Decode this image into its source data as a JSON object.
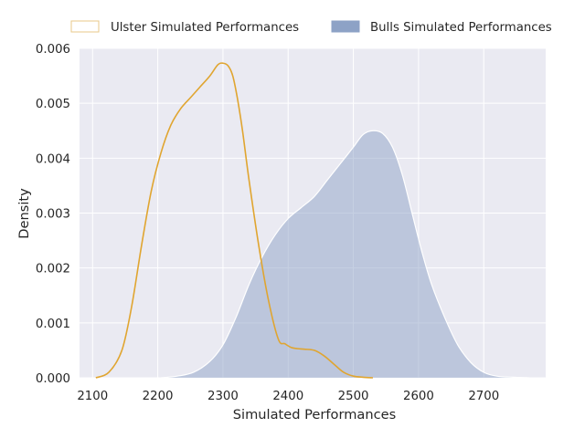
{
  "chart_data": {
    "type": "area",
    "xlabel": "Simulated Performances",
    "ylabel": "Density",
    "xlim": [
      2080,
      2795
    ],
    "ylim": [
      0,
      0.006
    ],
    "x_ticks": [
      2100,
      2200,
      2300,
      2400,
      2500,
      2600,
      2700
    ],
    "y_ticks": [
      0.0,
      0.001,
      0.002,
      0.003,
      0.004,
      0.005,
      0.006
    ],
    "x_tick_labels": [
      "2100",
      "2200",
      "2300",
      "2400",
      "2500",
      "2600",
      "2700"
    ],
    "y_tick_labels": [
      "0.000",
      "0.001",
      "0.002",
      "0.003",
      "0.004",
      "0.005",
      "0.006"
    ],
    "grid": true,
    "legend_position": "top",
    "background_color": "#eaeaf2",
    "series": [
      {
        "name": "Ulster Simulated Performances",
        "style": "line",
        "color": "#e0a530",
        "x": [
          2105,
          2125,
          2145,
          2160,
          2175,
          2190,
          2205,
          2220,
          2235,
          2250,
          2265,
          2280,
          2292,
          2300,
          2308,
          2315,
          2322,
          2330,
          2340,
          2355,
          2370,
          2385,
          2395,
          2405,
          2415,
          2425,
          2440,
          2455,
          2470,
          2485,
          2500,
          2515,
          2530
        ],
        "y": [
          0.0,
          0.0001,
          0.0005,
          0.0013,
          0.0024,
          0.0034,
          0.0041,
          0.0046,
          0.0049,
          0.0051,
          0.0053,
          0.0055,
          0.0057,
          0.00573,
          0.00568,
          0.0055,
          0.0051,
          0.0045,
          0.0036,
          0.0024,
          0.0014,
          0.0007,
          0.00062,
          0.00055,
          0.00053,
          0.00052,
          0.0005,
          0.0004,
          0.00025,
          0.0001,
          3e-05,
          1e-05,
          0.0
        ]
      },
      {
        "name": "Bulls Simulated Performances",
        "style": "filled",
        "color": "#8da2c6",
        "x": [
          2205,
          2230,
          2255,
          2280,
          2300,
          2320,
          2340,
          2360,
          2380,
          2400,
          2420,
          2440,
          2460,
          2480,
          2500,
          2515,
          2530,
          2545,
          2560,
          2575,
          2590,
          2605,
          2620,
          2640,
          2660,
          2680,
          2700,
          2720,
          2745,
          2770
        ],
        "y": [
          0.0,
          3e-05,
          0.0001,
          0.0003,
          0.0006,
          0.0011,
          0.0017,
          0.0022,
          0.0026,
          0.0029,
          0.0031,
          0.0033,
          0.0036,
          0.0039,
          0.0042,
          0.00443,
          0.0045,
          0.00445,
          0.0042,
          0.0037,
          0.003,
          0.0023,
          0.0017,
          0.0011,
          0.0006,
          0.00028,
          0.0001,
          3e-05,
          1e-05,
          0.0
        ]
      }
    ]
  }
}
